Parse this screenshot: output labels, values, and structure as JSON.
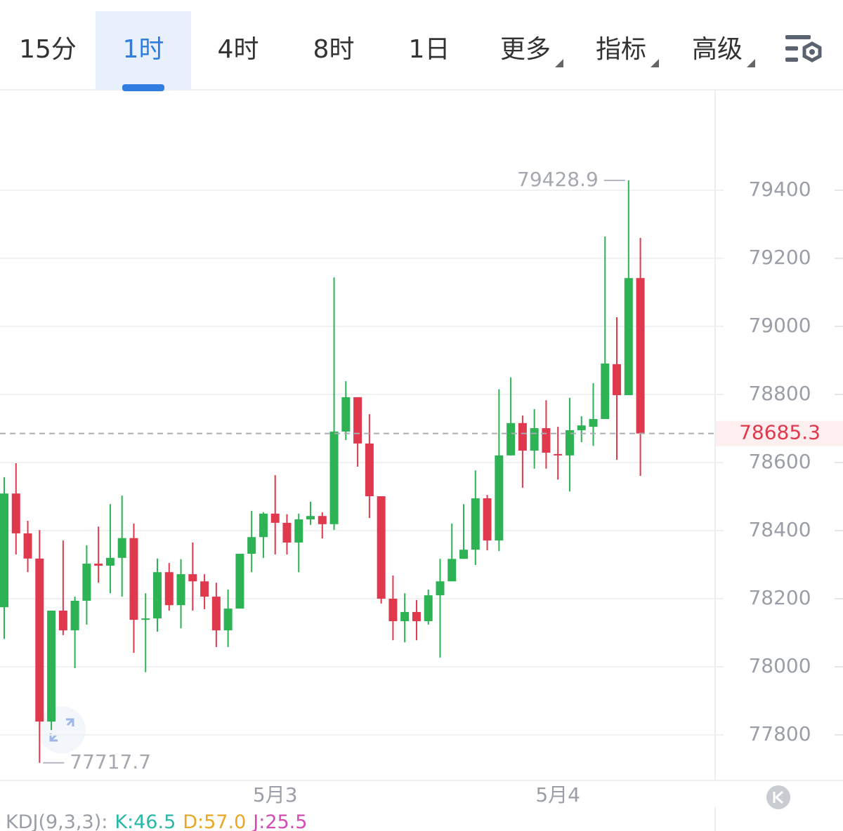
{
  "toolbar": {
    "tabs": [
      "15分",
      "1时",
      "4时",
      "8时",
      "1日",
      "更多",
      "指标",
      "高级"
    ],
    "active": 1
  },
  "chart_data": {
    "type": "candlestick",
    "categories": [
      null,
      null,
      null,
      null,
      null,
      null,
      null,
      null,
      null,
      null,
      null,
      null,
      null,
      null,
      null,
      null,
      null,
      null,
      null,
      null,
      null,
      null,
      null,
      "5月3",
      null,
      null,
      null,
      null,
      null,
      null,
      null,
      null,
      null,
      null,
      null,
      null,
      null,
      null,
      null,
      null,
      null,
      null,
      null,
      null,
      null,
      null,
      null,
      "5月4",
      null,
      null,
      null,
      null,
      null,
      null,
      null
    ],
    "open": [
      78175,
      78509,
      78392,
      78318,
      77839,
      78165,
      78107,
      78194,
      78303,
      78297,
      78320,
      78378,
      78138,
      78142,
      78278,
      78181,
      78272,
      78251,
      78206,
      78107,
      78171,
      78332,
      78381,
      78450,
      78423,
      78365,
      78433,
      78443,
      78419,
      78691,
      78792,
      78656,
      78501,
      78200,
      78134,
      78161,
      78134,
      78210,
      78251,
      78317,
      78344,
      78495,
      78371,
      78621,
      78716,
      78635,
      78701,
      78625,
      78621,
      78695,
      78705,
      78728,
      78889,
      78798,
      79142
    ],
    "high": [
      78557,
      78598,
      78429,
      78402,
      78165,
      78371,
      78206,
      78357,
      78412,
      78478,
      78503,
      78421,
      78216,
      78318,
      78305,
      78316,
      78365,
      78272,
      78247,
      78227,
      78332,
      78458,
      78454,
      78563,
      78448,
      78450,
      78485,
      78454,
      79144,
      78839,
      78792,
      78742,
      78501,
      78268,
      78216,
      78196,
      78227,
      78317,
      78421,
      78478,
      78577,
      78505,
      78815,
      78850,
      78738,
      78757,
      78783,
      78705,
      78790,
      78736,
      78833,
      79264,
      79027,
      79428.9,
      79260
    ],
    "low": [
      78082,
      78330,
      78278,
      77717.7,
      77814,
      78093,
      77996,
      78124,
      78247,
      78216,
      78206,
      78041,
      77984,
      78103,
      78165,
      78113,
      78165,
      78169,
      78058,
      78058,
      78171,
      78278,
      78320,
      78330,
      78330,
      78278,
      78417,
      78377,
      78402,
      78666,
      78588,
      78437,
      78186,
      78078,
      78072,
      78078,
      78124,
      78027,
      78251,
      78317,
      78299,
      78342,
      78340,
      78621,
      78526,
      78582,
      78582,
      78550,
      78515,
      78660,
      78649,
      78728,
      78608,
      78798,
      78561
    ],
    "close": [
      78509,
      78392,
      78318,
      77839,
      78165,
      78107,
      78194,
      78303,
      78297,
      78320,
      78378,
      78138,
      78142,
      78278,
      78181,
      78272,
      78251,
      78206,
      78107,
      78171,
      78332,
      78381,
      78450,
      78423,
      78365,
      78433,
      78443,
      78419,
      78691,
      78792,
      78656,
      78501,
      78200,
      78134,
      78161,
      78134,
      78210,
      78251,
      78317,
      78344,
      78495,
      78371,
      78621,
      78716,
      78635,
      78701,
      78629,
      78621,
      78695,
      78709,
      78728,
      78891,
      78798,
      79142,
      78685.3
    ],
    "up_color": "#2db354",
    "down_color": "#e0394d",
    "ylim": [
      77666,
      79695
    ],
    "yticks": [
      77800,
      78000,
      78200,
      78400,
      78600,
      78800,
      79000,
      79200,
      79400
    ],
    "grid": true,
    "max_label": 79428.9,
    "min_label": 77717.7,
    "last_price": 78685.3
  },
  "indicator": {
    "label": "KDJ(9,3,3):",
    "items": [
      "K:46.5",
      "D:57.0",
      "J:25.5"
    ],
    "colors": [
      "#29b8a8",
      "#e8a825",
      "#d44bb4"
    ]
  }
}
